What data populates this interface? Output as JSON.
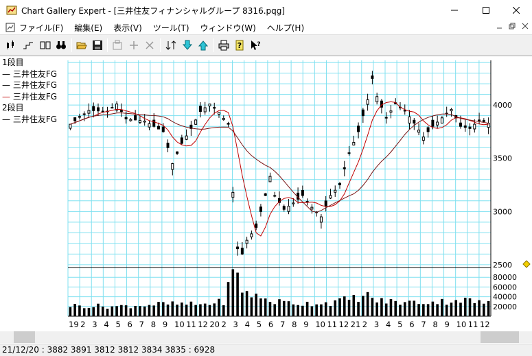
{
  "window": {
    "title": "Chart Gallery Expert - [三井住友フィナンシャルグループ 8316.pqg]",
    "minimize_icon": "minimize-icon",
    "maximize_icon": "maximize-icon",
    "close_icon": "close-icon"
  },
  "menu": {
    "items": [
      "ファイル(F)",
      "編集(E)",
      "表示(V)",
      "ツール(T)",
      "ウィンドウ(W)",
      "ヘルプ(H)"
    ]
  },
  "toolbar": {
    "icons": [
      "daily-candles-icon",
      "step-chart-icon",
      "dual-panel-icon",
      "binoculars-icon",
      "open-folder-icon",
      "save-disk-icon",
      "properties-icon",
      "add-icon",
      "delete-icon",
      "sort-icon",
      "download-icon",
      "upload-icon",
      "print-icon",
      "help-icon",
      "context-help-icon"
    ]
  },
  "legend": {
    "panel1_label": "1段目",
    "panel1_items": [
      "三井住友FG",
      "三井住友FG",
      "三井住友FG"
    ],
    "panel2_label": "2段目",
    "panel2_items": [
      "三井住友FG"
    ]
  },
  "chart_data": {
    "type": "candlestick",
    "series": [
      {
        "name": "三井住友FG",
        "kind": "price"
      },
      {
        "name": "三井住友FG",
        "kind": "moving-average-short"
      },
      {
        "name": "三井住友FG",
        "kind": "moving-average-long"
      },
      {
        "name": "三井住友FG",
        "kind": "volume"
      }
    ],
    "price_ticks": [
      4000,
      3500,
      3000,
      2500
    ],
    "price_ylim": [
      2480,
      4420
    ],
    "volume_ticks": [
      "80000",
      "60000",
      "40000",
      "20000"
    ],
    "volume_ylim": [
      0,
      100000
    ],
    "x_month_labels": [
      "19",
      "2",
      "3",
      "4",
      "5",
      "6",
      "7",
      "8",
      "9",
      "10",
      "11",
      "12",
      "20",
      "2",
      "3",
      "4",
      "5",
      "6",
      "7",
      "8",
      "9",
      "10",
      "11",
      "12",
      "21",
      "2",
      "3",
      "4",
      "5",
      "6",
      "7",
      "8",
      "9",
      "10",
      "11",
      "12"
    ],
    "price_anchors": [
      [
        0,
        3820
      ],
      [
        4,
        3950
      ],
      [
        8,
        3940
      ],
      [
        10,
        4010
      ],
      [
        12,
        3870
      ],
      [
        16,
        3850
      ],
      [
        20,
        3750
      ],
      [
        22,
        3450
      ],
      [
        24,
        3640
      ],
      [
        26,
        3780
      ],
      [
        28,
        3940
      ],
      [
        30,
        4010
      ],
      [
        32,
        3930
      ],
      [
        34,
        3820
      ],
      [
        35,
        3180
      ],
      [
        36,
        2650
      ],
      [
        37,
        2600
      ],
      [
        38,
        2730
      ],
      [
        40,
        2850
      ],
      [
        42,
        3150
      ],
      [
        43,
        3330
      ],
      [
        44,
        3150
      ],
      [
        46,
        3020
      ],
      [
        48,
        3080
      ],
      [
        50,
        3150
      ],
      [
        52,
        3040
      ],
      [
        54,
        2950
      ],
      [
        56,
        3150
      ],
      [
        58,
        3250
      ],
      [
        60,
        3550
      ],
      [
        62,
        3750
      ],
      [
        64,
        4050
      ],
      [
        65,
        4250
      ],
      [
        66,
        4080
      ],
      [
        68,
        3880
      ],
      [
        70,
        4010
      ],
      [
        72,
        3950
      ],
      [
        74,
        3830
      ],
      [
        76,
        3700
      ],
      [
        78,
        3800
      ],
      [
        80,
        3880
      ],
      [
        82,
        3960
      ],
      [
        84,
        3800
      ],
      [
        86,
        3780
      ],
      [
        88,
        3860
      ],
      [
        90,
        3830
      ]
    ],
    "volume_anchors": [
      [
        0,
        22000
      ],
      [
        10,
        20000
      ],
      [
        20,
        25000
      ],
      [
        28,
        24000
      ],
      [
        33,
        30000
      ],
      [
        34,
        60000
      ],
      [
        35,
        90000
      ],
      [
        36,
        80000
      ],
      [
        37,
        55000
      ],
      [
        40,
        40000
      ],
      [
        44,
        30000
      ],
      [
        50,
        26000
      ],
      [
        56,
        28000
      ],
      [
        60,
        35000
      ],
      [
        64,
        42000
      ],
      [
        66,
        32000
      ],
      [
        72,
        28000
      ],
      [
        80,
        30000
      ],
      [
        84,
        34000
      ],
      [
        90,
        26000
      ]
    ],
    "candle_count": 91,
    "grid": true
  },
  "status": {
    "text": "21/12/20 : 3882 3891 3812 3812  3834 3835 : 6928"
  },
  "colors": {
    "grid": "#7fe0f0",
    "candle": "#000000",
    "ma_short": "#c00000",
    "ma_long": "#7a1414",
    "marker": "#f4d000"
  }
}
